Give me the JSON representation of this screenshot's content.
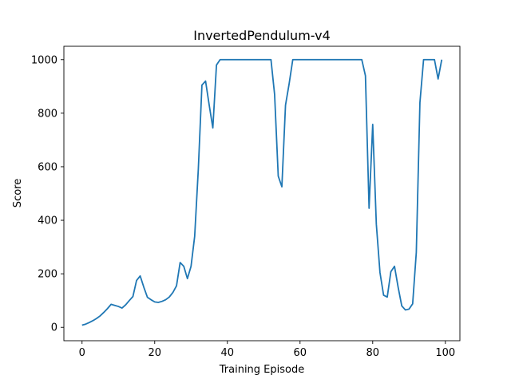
{
  "chart_data": {
    "type": "line",
    "title": "InvertedPendulum-v4",
    "xlabel": "Training Episode",
    "ylabel": "Score",
    "xlim": [
      -5,
      104
    ],
    "ylim": [
      -50,
      1050
    ],
    "xticks": [
      0,
      20,
      40,
      60,
      80,
      100
    ],
    "yticks": [
      0,
      200,
      400,
      600,
      800,
      1000
    ],
    "grid": false,
    "line_color": "#1f77b4",
    "series": [
      {
        "x": [
          0,
          1,
          2,
          3,
          4,
          5,
          6,
          7,
          8,
          9,
          10,
          11,
          12,
          13,
          14,
          15,
          16,
          17,
          18,
          19,
          20,
          21,
          22,
          23,
          24,
          25,
          26,
          27,
          28,
          29,
          30,
          31,
          32,
          33,
          34,
          35,
          36,
          37,
          38,
          39,
          40,
          41,
          42,
          43,
          44,
          45,
          46,
          47,
          48,
          49,
          50,
          51,
          52,
          53,
          54,
          55,
          56,
          57,
          58,
          59,
          60,
          61,
          62,
          63,
          64,
          65,
          66,
          67,
          68,
          69,
          70,
          71,
          72,
          73,
          74,
          75,
          76,
          77,
          78,
          79,
          80,
          81,
          82,
          83,
          84,
          85,
          86,
          87,
          88,
          89,
          90,
          91,
          92,
          93,
          94,
          95,
          96,
          97,
          98,
          99
        ],
        "values": [
          8,
          12,
          18,
          25,
          33,
          43,
          56,
          70,
          86,
          82,
          78,
          72,
          84,
          100,
          115,
          175,
          192,
          150,
          112,
          103,
          95,
          93,
          97,
          103,
          113,
          130,
          155,
          242,
          228,
          182,
          228,
          340,
          590,
          905,
          920,
          830,
          745,
          980,
          1000,
          1000,
          1000,
          1000,
          1000,
          1000,
          1000,
          1000,
          1000,
          1000,
          1000,
          1000,
          1000,
          1000,
          1000,
          870,
          565,
          525,
          830,
          910,
          1000,
          1000,
          1000,
          1000,
          1000,
          1000,
          1000,
          1000,
          1000,
          1000,
          1000,
          1000,
          1000,
          1000,
          1000,
          1000,
          1000,
          1000,
          1000,
          1000,
          940,
          445,
          758,
          385,
          205,
          120,
          113,
          208,
          228,
          150,
          80,
          65,
          68,
          88,
          280,
          840,
          1000,
          1000,
          1000,
          1000,
          928,
          1000
        ]
      }
    ]
  }
}
